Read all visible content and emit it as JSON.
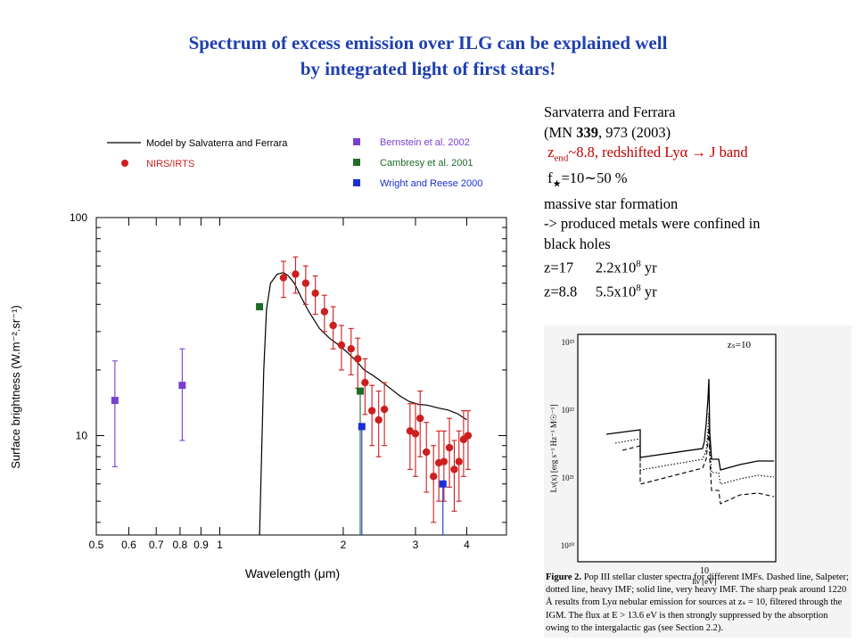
{
  "slide": {
    "title_line1": "Spectrum of excess emission over ILG can be explained well",
    "title_line2": "by integrated light of first stars!"
  },
  "notes": {
    "line1": "Sarvaterra and Ferrara",
    "line2_pre": "(MN ",
    "line2_bold": "339",
    "line2_post": ", 973 (2003)",
    "line3_z": "z",
    "line3_sub": "end",
    "line3_rest": "~8.8,   redshifted Lyα  → J band",
    "line4_f": "f",
    "line4_rest": "=10∼50 %",
    "line5": " massive star formation",
    "line6": "  -> produced metals were confined in",
    "line7": "black holes",
    "line8_pre": "z=17      2.2x10",
    "line8_exp": "8",
    "line8_post": " yr",
    "line9_pre": "z=8.8     5.5x10",
    "line9_exp": "8",
    "line9_post": " yr"
  },
  "chart_data": {
    "type": "scatter",
    "xlabel": "Wavelength  (μm)",
    "ylabel": "Surface brightness  (W.m⁻².sr⁻¹)",
    "xscale": "log",
    "yscale": "log",
    "xlim": [
      0.5,
      5.0
    ],
    "ylim": [
      3.5,
      100
    ],
    "x_ticks": [
      "0.5",
      "0.6",
      "0.7",
      "0.8",
      "0.9",
      "1",
      "2",
      "3",
      "4"
    ],
    "y_ticks": [
      "10",
      "100"
    ],
    "legend": [
      {
        "label": "Model by Salvaterra and Ferrara",
        "style": "line",
        "color": "#000000"
      },
      {
        "label": "NIRS/IRTS",
        "style": "circle",
        "color": "#cc1f1f",
        "text_color": "#cc1f1f"
      },
      {
        "label": "Bernstein et al. 2002",
        "style": "square",
        "color": "#7a3fd0",
        "text_color": "#7a3fd0"
      },
      {
        "label": "Cambresy et al. 2001",
        "style": "square",
        "color": "#1f6b2a",
        "text_color": "#1f6b2a"
      },
      {
        "label": "Wright and Reese 2000",
        "style": "square",
        "color": "#1a2fd6",
        "text_color": "#1a2fd6"
      }
    ],
    "series": [
      {
        "name": "Model by Salvaterra and Ferrara",
        "kind": "line",
        "points": [
          [
            1.25,
            3.5
          ],
          [
            1.28,
            20
          ],
          [
            1.3,
            38
          ],
          [
            1.33,
            50
          ],
          [
            1.38,
            55
          ],
          [
            1.43,
            56
          ],
          [
            1.47,
            54
          ],
          [
            1.52,
            50
          ],
          [
            1.58,
            43
          ],
          [
            1.65,
            37
          ],
          [
            1.75,
            31
          ],
          [
            1.85,
            28
          ],
          [
            1.95,
            26
          ],
          [
            2.05,
            24
          ],
          [
            2.15,
            22
          ],
          [
            2.25,
            20
          ],
          [
            2.35,
            19
          ],
          [
            2.45,
            18
          ],
          [
            2.6,
            16.5
          ],
          [
            2.75,
            15.2
          ],
          [
            2.9,
            14.3
          ],
          [
            3.05,
            13.9
          ],
          [
            3.2,
            13.8
          ],
          [
            3.4,
            13.4
          ],
          [
            3.6,
            13.1
          ],
          [
            3.8,
            12.6
          ],
          [
            4.0,
            11.8
          ]
        ]
      },
      {
        "name": "NIRS/IRTS",
        "kind": "errorbar",
        "points": [
          {
            "x": 1.43,
            "y": 53,
            "lo": 43,
            "hi": 63
          },
          {
            "x": 1.53,
            "y": 55,
            "lo": 45,
            "hi": 66
          },
          {
            "x": 1.62,
            "y": 50,
            "lo": 40,
            "hi": 60
          },
          {
            "x": 1.71,
            "y": 45,
            "lo": 36,
            "hi": 54
          },
          {
            "x": 1.8,
            "y": 37,
            "lo": 30,
            "hi": 44
          },
          {
            "x": 1.89,
            "y": 32,
            "lo": 25,
            "hi": 39
          },
          {
            "x": 1.98,
            "y": 26,
            "lo": 20,
            "hi": 32
          },
          {
            "x": 2.09,
            "y": 25,
            "lo": 19,
            "hi": 31
          },
          {
            "x": 2.17,
            "y": 22.5,
            "lo": 16.5,
            "hi": 28
          },
          {
            "x": 2.26,
            "y": 17.5,
            "lo": 12.5,
            "hi": 22.5
          },
          {
            "x": 2.35,
            "y": 13,
            "lo": 9,
            "hi": 17
          },
          {
            "x": 2.44,
            "y": 11.8,
            "lo": 8,
            "hi": 16
          },
          {
            "x": 2.52,
            "y": 13.2,
            "lo": 9,
            "hi": 17.5
          },
          {
            "x": 2.91,
            "y": 10.5,
            "lo": 7,
            "hi": 14
          },
          {
            "x": 3.0,
            "y": 10.2,
            "lo": 6.5,
            "hi": 14
          },
          {
            "x": 3.08,
            "y": 12,
            "lo": 8,
            "hi": 16
          },
          {
            "x": 3.19,
            "y": 8.4,
            "lo": 5.5,
            "hi": 11.5
          },
          {
            "x": 3.32,
            "y": 6.5,
            "lo": 4,
            "hi": 9
          },
          {
            "x": 3.42,
            "y": 7.5,
            "lo": 5,
            "hi": 10.5
          },
          {
            "x": 3.52,
            "y": 7.6,
            "lo": 5,
            "hi": 10.5
          },
          {
            "x": 3.63,
            "y": 8.8,
            "lo": 5.8,
            "hi": 12
          },
          {
            "x": 3.73,
            "y": 7.0,
            "lo": 4.5,
            "hi": 9.5
          },
          {
            "x": 3.83,
            "y": 7.6,
            "lo": 5,
            "hi": 10.5
          },
          {
            "x": 3.93,
            "y": 9.6,
            "lo": 6.5,
            "hi": 13
          },
          {
            "x": 4.03,
            "y": 10,
            "lo": 7,
            "hi": 13
          }
        ]
      },
      {
        "name": "Bernstein et al. 2002",
        "kind": "errorbar",
        "points": [
          {
            "x": 0.555,
            "y": 14.5,
            "lo": 7.2,
            "hi": 22
          },
          {
            "x": 0.81,
            "y": 17,
            "lo": 9.5,
            "hi": 25
          }
        ]
      },
      {
        "name": "Cambresy et al. 2001",
        "kind": "errorbar",
        "points": [
          {
            "x": 1.25,
            "y": 39,
            "lo": 39,
            "hi": 39
          },
          {
            "x": 2.2,
            "y": 16,
            "lo": 3.5,
            "hi": 16
          }
        ]
      },
      {
        "name": "Wright and Reese 2000",
        "kind": "errorbar",
        "points": [
          {
            "x": 2.22,
            "y": 11,
            "lo": 3.5,
            "hi": 11
          },
          {
            "x": 3.5,
            "y": 6,
            "lo": 3.5,
            "hi": 6
          }
        ]
      }
    ]
  },
  "inset": {
    "zs_label": "zₛ=10",
    "y_ticks": [
      "10²³",
      "10²²",
      "10²¹",
      "10²⁰"
    ],
    "ylabel": "Lν(x) [erg s⁻¹ Hz⁻¹ M☉⁻¹]",
    "x_tick": "10",
    "xlabel": "hν [eV]",
    "caption_bold": "Figure 2.",
    "caption_text": "  Pop III stellar cluster spectra for different IMFs. Dashed line, Salpeter; dotted line, heavy IMF; solid line, very heavy IMF. The sharp peak around 1220 Å results from Lyα nebular emission for sources at zₛ = 10, filtered through the IGM. The flux at E > 13.6 eV is then strongly suppressed by the absorption owing to the intergalactic gas (see Section 2.2)."
  }
}
